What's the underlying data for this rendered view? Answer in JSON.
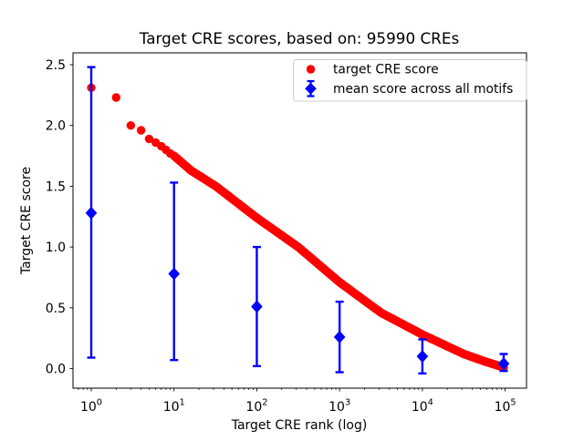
{
  "figure": {
    "title": "Target CRE scores, based on: 95990 CREs",
    "xlabel": "Target CRE rank (log)",
    "ylabel": "Target CRE score",
    "legend": {
      "entries": [
        "target CRE score",
        "mean score across all motifs"
      ]
    }
  },
  "chart_data": {
    "type": "scatter",
    "title": "Target CRE scores, based on: 95990 CREs",
    "xlabel": "Target CRE rank (log)",
    "ylabel": "Target CRE score",
    "x_scale": "log",
    "xlim": [
      0.6,
      180000
    ],
    "ylim": [
      -0.16,
      2.6
    ],
    "x_tick_base": "10",
    "x_tick_exponents": [
      0,
      1,
      2,
      3,
      4,
      5
    ],
    "y_tick_labels": [
      "0.0",
      "0.5",
      "1.0",
      "1.5",
      "2.0",
      "2.5"
    ],
    "y_tick_values": [
      0.0,
      0.5,
      1.0,
      1.5,
      2.0,
      2.5
    ],
    "grid": false,
    "legend_position": "upper right",
    "series": [
      {
        "name": "target CRE score",
        "marker": "circle",
        "color": "#ff0000",
        "n_points_depicted": 95990,
        "note": "dense curve of 95990 points; anchor values read from plot, linear in log10(rank) between anchors",
        "anchors": {
          "rank": [
            1,
            2,
            3,
            4,
            5,
            6,
            7,
            8,
            9,
            10,
            16,
            32,
            100,
            316,
            1000,
            3162,
            10000,
            17800,
            31600,
            56200,
            95990
          ],
          "score": [
            2.31,
            2.23,
            2.0,
            1.96,
            1.89,
            1.86,
            1.83,
            1.8,
            1.77,
            1.75,
            1.63,
            1.5,
            1.24,
            1.0,
            0.71,
            0.46,
            0.28,
            0.2,
            0.12,
            0.06,
            0.01
          ]
        }
      },
      {
        "name": "mean score across all motifs",
        "marker": "diamond",
        "color": "#0000ff",
        "error_bars": true,
        "points": [
          {
            "rank": 1,
            "mean": 1.28,
            "lo": 0.09,
            "hi": 2.48
          },
          {
            "rank": 10,
            "mean": 0.78,
            "lo": 0.07,
            "hi": 1.53
          },
          {
            "rank": 100,
            "mean": 0.51,
            "lo": 0.02,
            "hi": 1.0
          },
          {
            "rank": 1000,
            "mean": 0.26,
            "lo": -0.03,
            "hi": 0.55
          },
          {
            "rank": 10000,
            "mean": 0.1,
            "lo": -0.04,
            "hi": 0.24
          },
          {
            "rank": 95990,
            "mean": 0.04,
            "lo": -0.02,
            "hi": 0.12
          }
        ]
      }
    ],
    "colors": {
      "red_series": "#ff0000",
      "blue_series": "#0000ff",
      "axes": "#000000",
      "legend_border": "#cccccc",
      "background": "#ffffff"
    }
  }
}
